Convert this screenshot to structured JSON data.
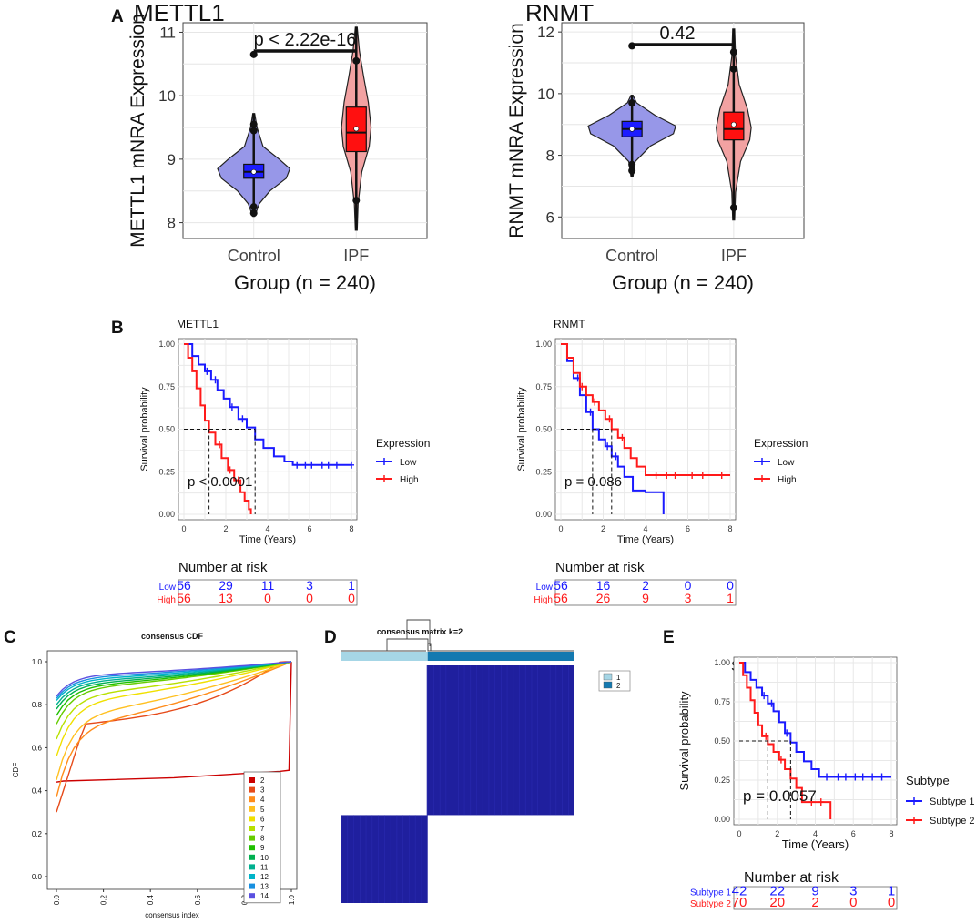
{
  "panels": {
    "A": {
      "label": "A",
      "violins": [
        {
          "title": "METTL1",
          "ylabel": "METTL1 mNRA Expression",
          "xlabel": "Group (n = 240)",
          "categories": [
            "Control",
            "IPF"
          ],
          "ylim": [
            7.75,
            11.15
          ],
          "yticks": [
            8,
            9,
            10,
            11
          ],
          "pvalue": "p < 2.22e-16",
          "groups": [
            {
              "name": "Control",
              "color": "#1c1cff",
              "violin_color": "#9797e8",
              "min": 8.1,
              "q1": 8.7,
              "median": 8.8,
              "q3": 8.92,
              "max": 9.72,
              "mean": 8.8,
              "outliers": [
                8.15,
                8.25,
                9.45,
                9.55,
                10.65
              ],
              "violin_profile": [
                [
                  8.1,
                  0.02
                ],
                [
                  8.3,
                  0.12
                ],
                [
                  8.5,
                  0.35
                ],
                [
                  8.7,
                  0.7
                ],
                [
                  8.85,
                  0.78
                ],
                [
                  9.0,
                  0.55
                ],
                [
                  9.2,
                  0.2
                ],
                [
                  9.5,
                  0.07
                ],
                [
                  9.72,
                  0.02
                ]
              ]
            },
            {
              "name": "IPF",
              "color": "#ff1010",
              "violin_color": "#f2a2a2",
              "min": 7.88,
              "q1": 9.12,
              "median": 9.42,
              "q3": 9.82,
              "max": 11.08,
              "mean": 9.48,
              "outliers": [
                8.35,
                10.55
              ],
              "violin_profile": [
                [
                  7.88,
                  0.02
                ],
                [
                  8.3,
                  0.04
                ],
                [
                  8.8,
                  0.12
                ],
                [
                  9.2,
                  0.28
                ],
                [
                  9.5,
                  0.32
                ],
                [
                  9.9,
                  0.26
                ],
                [
                  10.3,
                  0.16
                ],
                [
                  10.7,
                  0.07
                ],
                [
                  11.08,
                  0.02
                ]
              ]
            }
          ]
        },
        {
          "title": "RNMT",
          "ylabel": "RNMT mNRA Expression",
          "xlabel": "Group (n = 240)",
          "categories": [
            "Control",
            "IPF"
          ],
          "ylim": [
            5.3,
            12.3
          ],
          "yticks": [
            6,
            8,
            10,
            12
          ],
          "pvalue": "0.42",
          "groups": [
            {
              "name": "Control",
              "color": "#1c1cff",
              "violin_color": "#9797e8",
              "min": 7.3,
              "q1": 8.6,
              "median": 8.85,
              "q3": 9.1,
              "max": 9.95,
              "mean": 8.85,
              "outliers": [
                7.5,
                7.7,
                9.7,
                11.55
              ],
              "violin_profile": [
                [
                  7.3,
                  0.02
                ],
                [
                  7.8,
                  0.07
                ],
                [
                  8.3,
                  0.4
                ],
                [
                  8.7,
                  0.9
                ],
                [
                  8.95,
                  0.95
                ],
                [
                  9.3,
                  0.5
                ],
                [
                  9.7,
                  0.1
                ],
                [
                  9.95,
                  0.02
                ]
              ]
            },
            {
              "name": "IPF",
              "color": "#ff1010",
              "violin_color": "#f2a2a2",
              "min": 5.9,
              "q1": 8.5,
              "median": 8.85,
              "q3": 9.4,
              "max": 12.1,
              "mean": 9.0,
              "outliers": [
                6.3,
                10.8,
                11.35
              ],
              "violin_profile": [
                [
                  5.9,
                  0.02
                ],
                [
                  6.8,
                  0.04
                ],
                [
                  7.8,
                  0.15
                ],
                [
                  8.5,
                  0.35
                ],
                [
                  8.9,
                  0.38
                ],
                [
                  9.5,
                  0.3
                ],
                [
                  10.3,
                  0.12
                ],
                [
                  11.2,
                  0.04
                ],
                [
                  12.1,
                  0.02
                ]
              ]
            }
          ]
        }
      ]
    },
    "B": {
      "label": "B",
      "km": [
        {
          "title": "METTL1",
          "ylabel": "Survival probability",
          "xlabel": "Time (Years)",
          "yticks": [
            "0.00",
            "0.25",
            "0.50",
            "0.75",
            "1.00"
          ],
          "xticks": [
            "0",
            "2",
            "4",
            "6",
            "8"
          ],
          "pvalue": "p < 0.0001",
          "legend_title": "Expression",
          "series": [
            {
              "name": "Low",
              "color": "#1a1aff",
              "times": [
                0,
                0.4,
                0.7,
                1.0,
                1.3,
                1.6,
                1.9,
                2.2,
                2.6,
                3.0,
                3.4,
                3.8,
                4.3,
                4.8,
                5.2,
                8.0
              ],
              "surv": [
                1.0,
                0.93,
                0.88,
                0.84,
                0.79,
                0.73,
                0.68,
                0.63,
                0.56,
                0.51,
                0.44,
                0.39,
                0.34,
                0.31,
                0.29,
                0.29
              ],
              "censor_times": [
                1.1,
                1.5,
                2.3,
                2.8,
                5.4,
                5.8,
                6.1,
                6.6,
                6.9,
                7.3,
                8.0
              ]
            },
            {
              "name": "High",
              "color": "#ff1a1a",
              "times": [
                0,
                0.2,
                0.4,
                0.6,
                0.8,
                1.0,
                1.2,
                1.5,
                1.8,
                2.1,
                2.4,
                2.7,
                2.9,
                3.1,
                3.2
              ],
              "surv": [
                1.0,
                0.92,
                0.84,
                0.74,
                0.64,
                0.55,
                0.48,
                0.41,
                0.33,
                0.26,
                0.2,
                0.13,
                0.08,
                0.03,
                0.0
              ],
              "censor_times": [
                1.7,
                2.2,
                2.6
              ]
            }
          ],
          "risk_table": {
            "title": "Number at risk",
            "rows": [
              {
                "label": "Low",
                "color": "#1a1aff",
                "values": [
                  "56",
                  "29",
                  "11",
                  "3",
                  "1"
                ]
              },
              {
                "label": "High",
                "color": "#ff1a1a",
                "values": [
                  "56",
                  "13",
                  "0",
                  "0",
                  "0"
                ]
              }
            ]
          }
        },
        {
          "title": "RNMT",
          "ylabel": "Survival probability",
          "xlabel": "Time (Years)",
          "yticks": [
            "0.00",
            "0.25",
            "0.50",
            "0.75",
            "1.00"
          ],
          "xticks": [
            "0",
            "2",
            "4",
            "6",
            "8"
          ],
          "pvalue": "p = 0.086",
          "legend_title": "Expression",
          "series": [
            {
              "name": "Low",
              "color": "#1a1aff",
              "times": [
                0,
                0.3,
                0.6,
                0.9,
                1.2,
                1.5,
                1.8,
                2.1,
                2.4,
                2.7,
                3.0,
                3.4,
                4.0,
                4.8,
                4.85
              ],
              "surv": [
                1.0,
                0.9,
                0.8,
                0.7,
                0.6,
                0.5,
                0.44,
                0.4,
                0.34,
                0.28,
                0.22,
                0.14,
                0.13,
                0.13,
                0.0
              ],
              "censor_times": [
                0.8,
                1.4,
                2.2,
                2.6
              ]
            },
            {
              "name": "High",
              "color": "#ff1a1a",
              "times": [
                0,
                0.3,
                0.6,
                0.9,
                1.2,
                1.5,
                1.8,
                2.1,
                2.4,
                2.7,
                3.0,
                3.3,
                3.6,
                4.0,
                8.0
              ],
              "surv": [
                1.0,
                0.92,
                0.83,
                0.75,
                0.7,
                0.66,
                0.61,
                0.56,
                0.5,
                0.45,
                0.39,
                0.33,
                0.28,
                0.23,
                0.23
              ],
              "censor_times": [
                1.0,
                1.6,
                2.3,
                2.9,
                4.5,
                5.0,
                5.4,
                6.2,
                6.7,
                7.6
              ]
            }
          ],
          "risk_table": {
            "title": "Number at risk",
            "rows": [
              {
                "label": "Low",
                "color": "#1a1aff",
                "values": [
                  "56",
                  "16",
                  "2",
                  "0",
                  "0"
                ]
              },
              {
                "label": "High",
                "color": "#ff1a1a",
                "values": [
                  "56",
                  "26",
                  "9",
                  "3",
                  "1"
                ]
              }
            ]
          }
        }
      ]
    },
    "C": {
      "label": "C",
      "title": "consensus CDF",
      "ylabel": "CDF",
      "xlabel": "consensus index",
      "yticks": [
        "0.0",
        "0.2",
        "0.4",
        "0.6",
        "0.8",
        "1.0"
      ],
      "xticks": [
        "0.0",
        "0.2",
        "0.4",
        "0.6",
        "0.8",
        "1.0"
      ],
      "legend": [
        "2",
        "3",
        "4",
        "5",
        "6",
        "7",
        "8",
        "9",
        "10",
        "11",
        "12",
        "13",
        "14"
      ],
      "legend_colors": [
        "#cc0000",
        "#e64a19",
        "#ff8c1a",
        "#ffc020",
        "#f0e000",
        "#b8e000",
        "#66cc00",
        "#1fbf00",
        "#00b050",
        "#00b090",
        "#00b4c8",
        "#1890e0",
        "#5a50e0"
      ],
      "curve_start": [
        0.44,
        0.3,
        0.37,
        0.45,
        0.56,
        0.64,
        0.71,
        0.75,
        0.78,
        0.8,
        0.82,
        0.83,
        0.84
      ],
      "curve_mid": [
        0.47,
        0.82,
        0.71,
        0.76,
        0.82,
        0.85,
        0.88,
        0.89,
        0.9,
        0.91,
        0.92,
        0.93,
        0.94
      ]
    },
    "D": {
      "label": "D",
      "title": "consensus matrix k=2",
      "legend": [
        "1",
        "2"
      ],
      "cluster_colors": [
        "#a6d6e6",
        "#1479b0"
      ],
      "cluster_fraction": [
        0.37,
        0.63
      ],
      "matrix_color": "#1f1f9e"
    },
    "E": {
      "label": "E",
      "title": "Subtype",
      "ylabel": "Survival probability",
      "xlabel": "Time (Years)",
      "yticks": [
        "0.00",
        "0.25",
        "0.50",
        "0.75",
        "1.00"
      ],
      "xticks": [
        "0",
        "2",
        "4",
        "6",
        "8"
      ],
      "pvalue": "p = 0.0057",
      "legend_title": "Subtype",
      "series": [
        {
          "name": "Subtype 1",
          "color": "#1a1aff",
          "times": [
            0,
            0.3,
            0.6,
            0.9,
            1.2,
            1.5,
            1.8,
            2.1,
            2.4,
            2.7,
            3.0,
            3.4,
            3.8,
            4.2,
            8.0
          ],
          "surv": [
            1.0,
            0.94,
            0.89,
            0.84,
            0.79,
            0.74,
            0.69,
            0.62,
            0.55,
            0.49,
            0.43,
            0.37,
            0.32,
            0.27,
            0.27
          ],
          "censor_times": [
            1.3,
            1.7,
            2.5,
            4.6,
            5.2,
            5.6,
            6.1,
            6.5,
            7.0,
            7.5
          ]
        },
        {
          "name": "Subtype 2",
          "color": "#ff1a1a",
          "times": [
            0,
            0.2,
            0.4,
            0.6,
            0.8,
            1.0,
            1.2,
            1.5,
            1.8,
            2.1,
            2.4,
            2.7,
            3.0,
            3.3,
            4.6,
            4.8
          ],
          "surv": [
            1.0,
            0.92,
            0.84,
            0.76,
            0.68,
            0.6,
            0.53,
            0.48,
            0.43,
            0.38,
            0.32,
            0.26,
            0.2,
            0.11,
            0.11,
            0.0
          ],
          "censor_times": [
            1.4,
            2.2,
            3.8,
            4.3
          ]
        }
      ],
      "risk_table": {
        "title": "Number at risk",
        "rows": [
          {
            "label": "Subtype 1",
            "color": "#1a1aff",
            "values": [
              "42",
              "22",
              "9",
              "3",
              "1"
            ]
          },
          {
            "label": "Subtype 2",
            "color": "#ff1a1a",
            "values": [
              "70",
              "20",
              "2",
              "0",
              "0"
            ]
          }
        ]
      }
    }
  },
  "chart_data": [
    {
      "type": "violin",
      "title": "METTL1",
      "ylabel": "METTL1 mNRA Expression",
      "xlabel": "Group (n = 240)",
      "categories": [
        "Control",
        "IPF"
      ],
      "median": [
        8.8,
        9.42
      ],
      "ylim": [
        7.75,
        11.15
      ]
    },
    {
      "type": "violin",
      "title": "RNMT",
      "ylabel": "RNMT mNRA Expression",
      "xlabel": "Group (n = 240)",
      "categories": [
        "Control",
        "IPF"
      ],
      "median": [
        8.85,
        8.85
      ],
      "ylim": [
        5.3,
        12.3
      ]
    },
    {
      "type": "line",
      "title": "METTL1",
      "xlabel": "Time (Years)",
      "ylabel": "Survival probability",
      "series": [
        {
          "name": "Low"
        },
        {
          "name": "High"
        }
      ],
      "pvalue": "p < 0.0001"
    },
    {
      "type": "line",
      "title": "RNMT",
      "xlabel": "Time (Years)",
      "ylabel": "Survival probability",
      "series": [
        {
          "name": "Low"
        },
        {
          "name": "High"
        }
      ],
      "pvalue": "p = 0.086"
    },
    {
      "type": "line",
      "title": "consensus CDF",
      "xlabel": "consensus index",
      "ylabel": "CDF",
      "series_count": 13
    },
    {
      "type": "heatmap",
      "title": "consensus matrix k=2",
      "clusters": [
        "1",
        "2"
      ]
    },
    {
      "type": "line",
      "title": "Subtype",
      "xlabel": "Time (Years)",
      "ylabel": "Survival probability",
      "series": [
        {
          "name": "Subtype 1"
        },
        {
          "name": "Subtype 2"
        }
      ],
      "pvalue": "p = 0.0057"
    }
  ]
}
